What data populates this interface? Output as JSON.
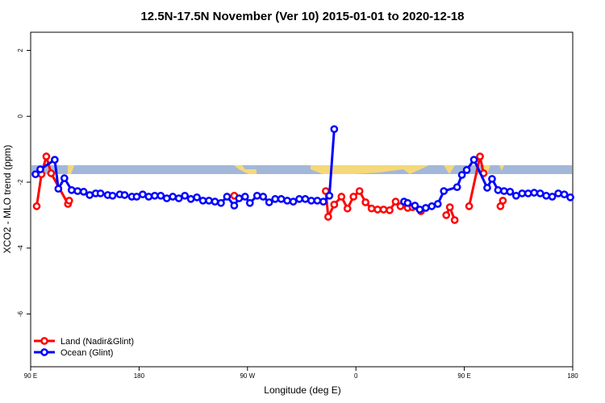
{
  "chart_data": {
    "type": "line",
    "title": "12.5N-17.5N November (Ver 10)   2015-01-01 to 2020-12-18",
    "xlabel": "Longitude (deg E)",
    "ylabel": "XCO2 - MLO trend (ppm)",
    "xlim": [
      90,
      540
    ],
    "ylim": [
      -7.6,
      2.55
    ],
    "xticks": [
      {
        "value": 90,
        "label": "90 E"
      },
      {
        "value": 180,
        "label": "180"
      },
      {
        "value": 270,
        "label": "90 W"
      },
      {
        "value": 360,
        "label": "0"
      },
      {
        "value": 450,
        "label": "90 E"
      },
      {
        "value": 540,
        "label": "180"
      }
    ],
    "yticks": [
      2,
      0,
      -2,
      -4,
      -6
    ],
    "legend": "bottom-left",
    "series": [
      {
        "name": "Land (Nadir&Glint)",
        "color": "#ff0000",
        "x": [
          95,
          99,
          103,
          107,
          121,
          122,
          null,
          259,
          null,
          335,
          337,
          342,
          348,
          353,
          358,
          363,
          368,
          373,
          378,
          383,
          388,
          393,
          397,
          403,
          407,
          414,
          null,
          435,
          438,
          442,
          null,
          454,
          463,
          466,
          null,
          480,
          482
        ],
        "values": [
          -2.73,
          -1.76,
          -1.22,
          -1.73,
          -2.66,
          -2.56,
          null,
          -2.41,
          null,
          -2.27,
          -3.05,
          -2.68,
          -2.44,
          -2.8,
          -2.44,
          -2.27,
          -2.61,
          -2.8,
          -2.83,
          -2.83,
          -2.85,
          -2.59,
          -2.73,
          -2.78,
          -2.76,
          -2.88,
          null,
          -3.0,
          -2.76,
          -3.15,
          null,
          -2.73,
          -1.22,
          -1.73,
          null,
          -2.73,
          -2.56
        ]
      },
      {
        "name": "Ocean (Glint)",
        "color": "#0000ff",
        "x": [
          94,
          98,
          110,
          113,
          118,
          124,
          129,
          134,
          139,
          144,
          148,
          154,
          158,
          164,
          168,
          174,
          178,
          183,
          188,
          193,
          198,
          203,
          208,
          213,
          218,
          223,
          228,
          233,
          238,
          243,
          248,
          253,
          259,
          263,
          268,
          272,
          278,
          283,
          288,
          293,
          298,
          303,
          308,
          313,
          318,
          323,
          328,
          333,
          338,
          342,
          351,
          null,
          400,
          403,
          409,
          413,
          418,
          423,
          428,
          433,
          444,
          448,
          452,
          458,
          469,
          473,
          478,
          483,
          488,
          493,
          498,
          503,
          508,
          513,
          518,
          523,
          528,
          533,
          538
        ],
        "values": [
          -1.76,
          -1.61,
          -1.32,
          -2.2,
          -1.88,
          -2.24,
          -2.27,
          -2.29,
          -2.39,
          -2.34,
          -2.34,
          -2.39,
          -2.41,
          -2.37,
          -2.39,
          -2.44,
          -2.44,
          -2.37,
          -2.44,
          -2.41,
          -2.41,
          -2.49,
          -2.44,
          -2.49,
          -2.41,
          -2.51,
          -2.46,
          -2.56,
          -2.56,
          -2.59,
          -2.63,
          -2.44,
          -2.71,
          -2.49,
          -2.44,
          -2.63,
          -2.41,
          -2.44,
          -2.61,
          -2.51,
          -2.51,
          -2.56,
          -2.59,
          -2.51,
          -2.51,
          -2.56,
          -2.56,
          -2.59,
          -2.41,
          -0.39,
          null,
          -2.29,
          -2.59,
          -2.63,
          -2.71,
          -2.83,
          -2.78,
          -2.73,
          -2.66,
          -2.27,
          -2.15,
          -1.78,
          -1.63,
          -1.32,
          -2.17,
          -1.9,
          -2.24,
          -2.27,
          -2.29,
          -2.41,
          -2.34,
          -2.34,
          -2.32,
          -2.34,
          -2.41,
          -2.44,
          -2.34,
          -2.37,
          -2.46
        ]
      }
    ]
  }
}
